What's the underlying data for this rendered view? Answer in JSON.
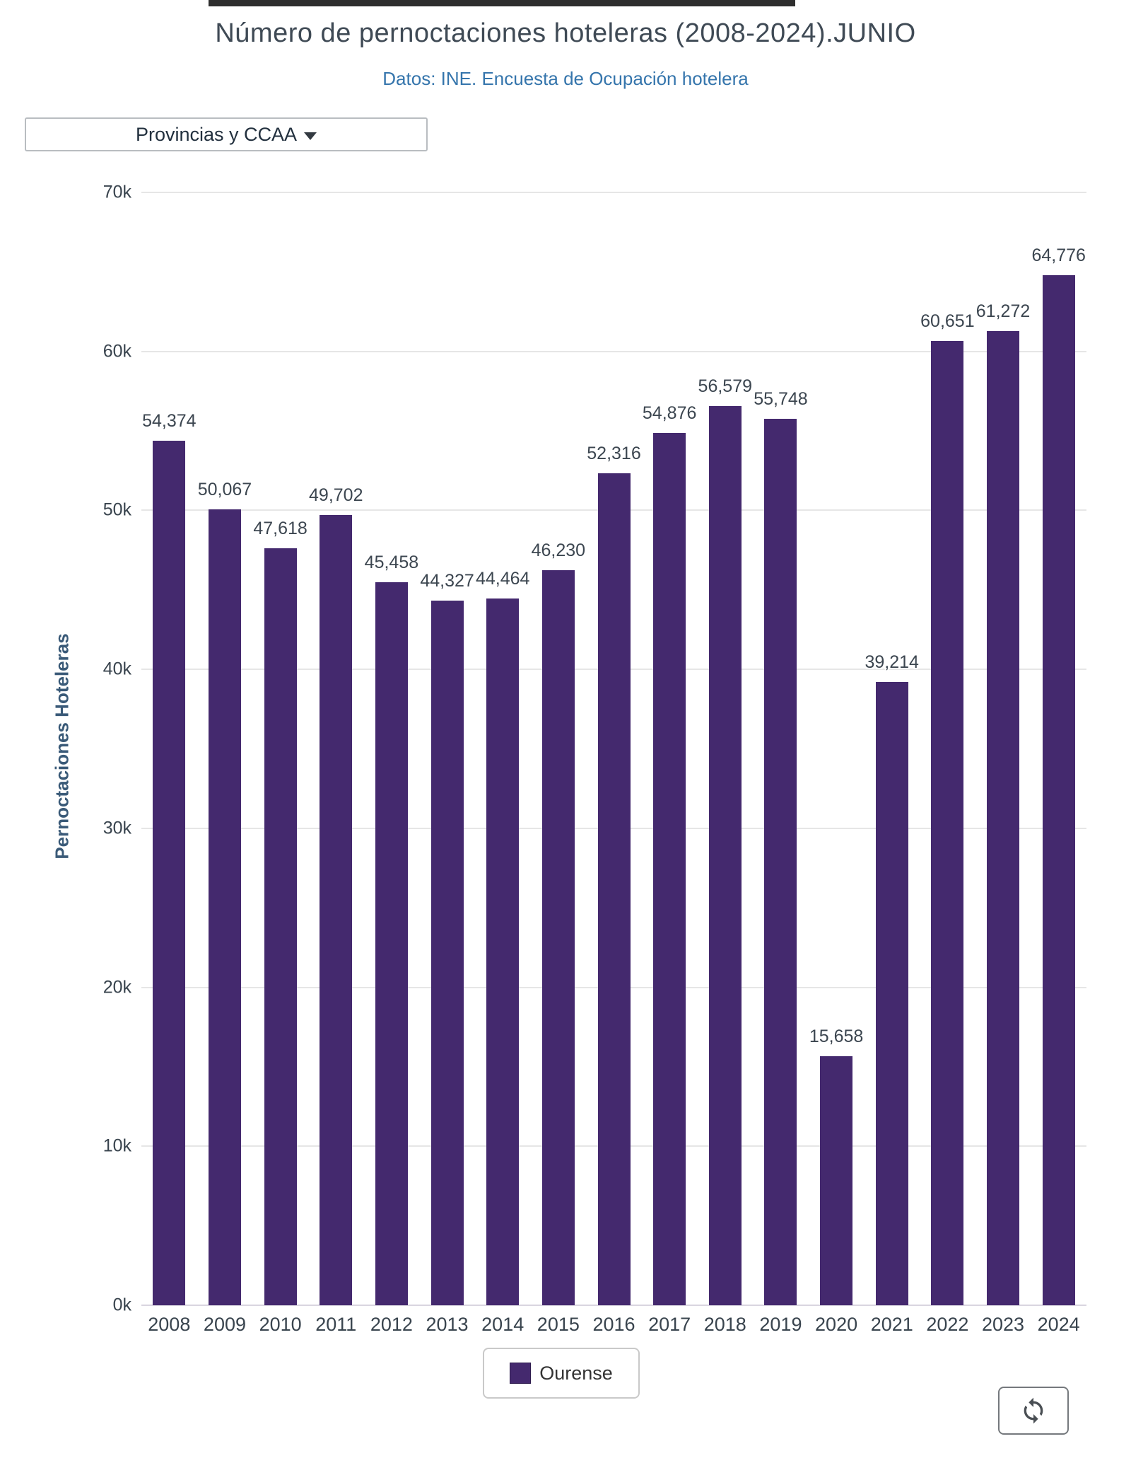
{
  "header": {
    "title": "Número de pernoctaciones hoteleras (2008-2024).JUNIO",
    "subtitle": "Datos: INE. Encuesta de Ocupación hotelera"
  },
  "controls": {
    "dropdown_label": "Provincias y CCAA",
    "dropdown_icon": "caret-down-icon"
  },
  "chart_data": {
    "type": "bar",
    "title": "Número de pernoctaciones hoteleras (2008-2024).JUNIO",
    "subtitle": "Datos: INE. Encuesta de Ocupación hotelera",
    "xlabel": "",
    "ylabel": "Pernoctaciones Hoteleras",
    "categories": [
      "2008",
      "2009",
      "2010",
      "2011",
      "2012",
      "2013",
      "2014",
      "2015",
      "2016",
      "2017",
      "2018",
      "2019",
      "2020",
      "2021",
      "2022",
      "2023",
      "2024"
    ],
    "series": [
      {
        "name": "Ourense",
        "values": [
          54374,
          50067,
          47618,
          49702,
          45458,
          44327,
          44464,
          46230,
          52316,
          54876,
          56579,
          55748,
          15658,
          39214,
          60651,
          61272,
          64776
        ],
        "value_labels": [
          "54,374",
          "50,067",
          "47,618",
          "49,702",
          "45,458",
          "44,327",
          "44,464",
          "46,230",
          "52,316",
          "54,876",
          "56,579",
          "55,748",
          "15,658",
          "39,214",
          "60,651",
          "61,272",
          "64,776"
        ],
        "color": "#44296e"
      }
    ],
    "ylim": [
      0,
      70000
    ],
    "ytick_values": [
      0,
      10000,
      20000,
      30000,
      40000,
      50000,
      60000,
      70000
    ],
    "ytick_labels": [
      "0k",
      "10k",
      "20k",
      "30k",
      "40k",
      "50k",
      "60k",
      "70k"
    ],
    "grid": true,
    "legend_position": "bottom"
  },
  "legend": {
    "label": "Ourense",
    "swatch_color": "#44296e"
  },
  "footer": {
    "refresh_icon": "sync-icon"
  },
  "colors": {
    "bar": "#44296e",
    "title": "#3f4a55",
    "subtitle": "#3575ac",
    "axis_text": "#39444e",
    "gridline": "#e6e6e6"
  }
}
